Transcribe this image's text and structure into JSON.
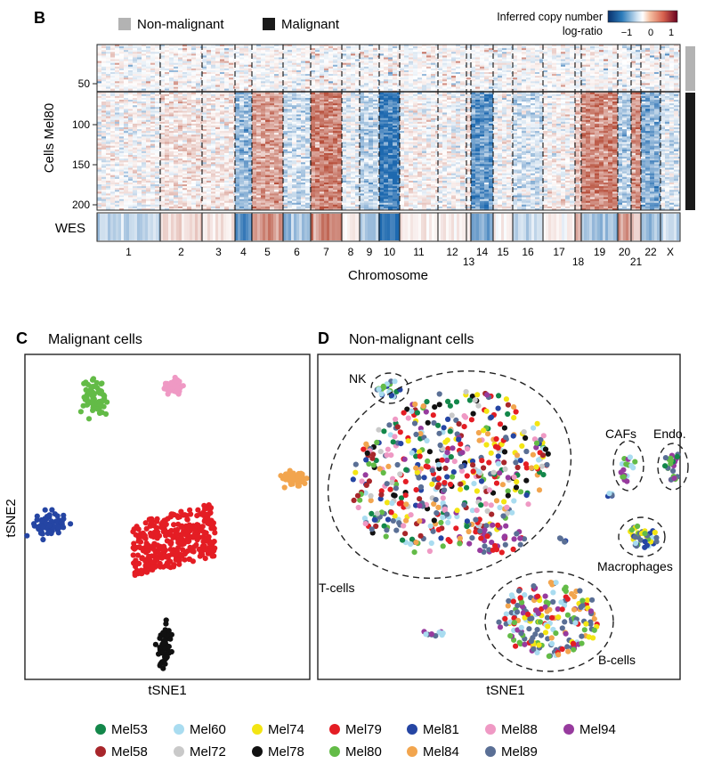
{
  "panel_b": {
    "label": "B",
    "legend_nonmalignant": "Non-malignant",
    "legend_malignant": "Malignant",
    "colorbar_title_1": "Inferred copy number",
    "colorbar_title_2": "log-ratio",
    "colorbar_ticks": [
      "−1",
      "0",
      "1"
    ],
    "ylabel": "Cells Mel80",
    "ytick_labels": [
      "50",
      "100",
      "150",
      "200"
    ],
    "wes_label": "WES",
    "xlabel": "Chromosome",
    "chromosomes": [
      "1",
      "2",
      "3",
      "4",
      "5",
      "6",
      "7",
      "8",
      "9",
      "10",
      "11",
      "12",
      "13",
      "14",
      "15",
      "16",
      "17",
      "18",
      "19",
      "20",
      "21",
      "22",
      "X"
    ],
    "colors": {
      "nonmalignant": "#b3b3b3",
      "malignant": "#1a1a1a"
    }
  },
  "chart_data": [
    {
      "type": "heatmap",
      "ylabel": "Cells Mel80",
      "xlabel": "Chromosome",
      "yticks": [
        50,
        100,
        150,
        200
      ],
      "row_groups": [
        {
          "name": "Non-malignant",
          "rows": [
            1,
            62
          ]
        },
        {
          "name": "Malignant",
          "rows": [
            63,
            205
          ]
        }
      ],
      "colorscale": {
        "title": "Inferred copy number log-ratio",
        "range": [
          -1,
          1
        ]
      },
      "chromosomes": [
        "1",
        "2",
        "3",
        "4",
        "5",
        "6",
        "7",
        "8",
        "9",
        "10",
        "11",
        "12",
        "13",
        "14",
        "15",
        "16",
        "17",
        "18",
        "19",
        "20",
        "21",
        "22",
        "X"
      ],
      "malignant_mean_log_ratio": [
        0.0,
        0.15,
        0.1,
        -0.45,
        0.55,
        -0.2,
        0.75,
        -0.1,
        -0.3,
        -0.95,
        0.05,
        0.0,
        0.05,
        -0.7,
        0.0,
        -0.2,
        0.05,
        0.3,
        0.7,
        -0.3,
        0.65,
        -0.55,
        -0.15
      ],
      "wes_log_ratio": [
        -0.3,
        0.2,
        0.15,
        -0.8,
        0.6,
        -0.4,
        0.7,
        0.1,
        -0.5,
        -1.0,
        0.15,
        0.1,
        0.05,
        -0.6,
        0.05,
        -0.2,
        0.1,
        0.55,
        -0.4,
        0.65,
        0.35,
        -0.5,
        -0.25
      ]
    },
    {
      "type": "scatter",
      "panel": "C",
      "title": "Malignant cells",
      "xlabel": "tSNE1",
      "ylabel": "tSNE2",
      "clusters": [
        {
          "name": "Mel80",
          "color": "#63bb47",
          "center": [
            -0.55,
            0.78
          ],
          "n": 70
        },
        {
          "name": "Mel88",
          "color": "#ef99c4",
          "center": [
            0.05,
            0.85
          ],
          "n": 55
        },
        {
          "name": "Mel84",
          "color": "#f2a54e",
          "center": [
            0.95,
            0.25
          ],
          "n": 55
        },
        {
          "name": "Mel81",
          "color": "#2545a3",
          "center": [
            -0.88,
            -0.05
          ],
          "n": 75
        },
        {
          "name": "Mel79",
          "color": "#e41d24",
          "center": [
            0.05,
            -0.15
          ],
          "n": 330
        },
        {
          "name": "Mel78",
          "color": "#111111",
          "center": [
            -0.02,
            -0.85
          ],
          "n": 55
        }
      ]
    },
    {
      "type": "scatter",
      "panel": "D",
      "title": "Non-malignant cells",
      "xlabel": "tSNE1",
      "annotations": [
        "NK",
        "T-cells",
        "CAFs",
        "Endo.",
        "Macrophages",
        "B-cells"
      ]
    }
  ],
  "panel_c": {
    "label": "C",
    "title": "Malignant cells",
    "xlabel": "tSNE1",
    "ylabel": "tSNE2"
  },
  "panel_d": {
    "label": "D",
    "title": "Non-malignant cells",
    "xlabel": "tSNE1",
    "groups": {
      "nk": "NK",
      "tcells": "T-cells",
      "cafs": "CAFs",
      "endo": "Endo.",
      "macro": "Macrophages",
      "bcells": "B-cells"
    }
  },
  "legend": [
    {
      "name": "Mel53",
      "color": "#13874a"
    },
    {
      "name": "Mel60",
      "color": "#a9dcf0"
    },
    {
      "name": "Mel74",
      "color": "#f3e513"
    },
    {
      "name": "Mel79",
      "color": "#e41d24"
    },
    {
      "name": "Mel81",
      "color": "#2545a3"
    },
    {
      "name": "Mel88",
      "color": "#ef99c4"
    },
    {
      "name": "Mel94",
      "color": "#973b9e"
    },
    {
      "name": "Mel58",
      "color": "#a8262b"
    },
    {
      "name": "Mel72",
      "color": "#c9c9c9"
    },
    {
      "name": "Mel78",
      "color": "#111111"
    },
    {
      "name": "Mel80",
      "color": "#63bb47"
    },
    {
      "name": "Mel84",
      "color": "#f2a54e"
    },
    {
      "name": "Mel89",
      "color": "#5a6f95"
    }
  ]
}
